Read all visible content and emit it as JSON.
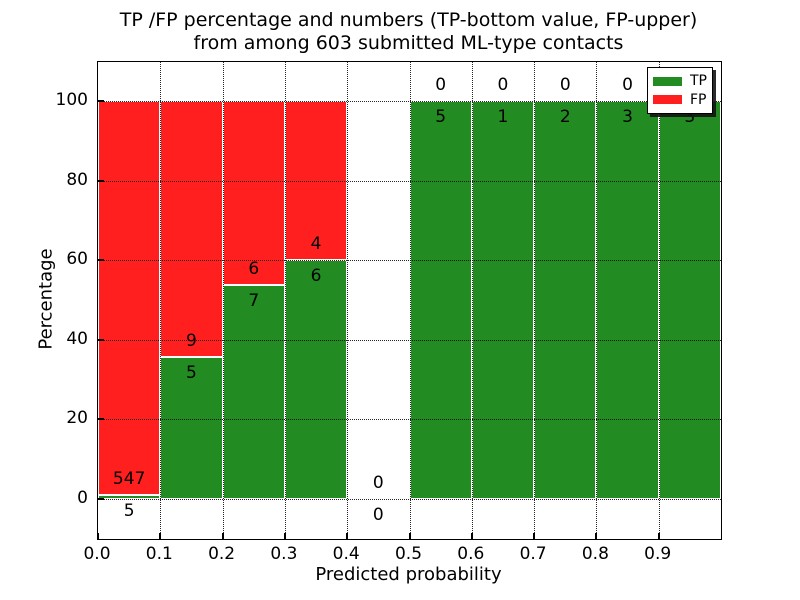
{
  "figure": {
    "title_line1": "TP /FP percentage and numbers (TP-bottom value, FP-upper)",
    "title_line2": "from among 603 submitted ML-type contacts",
    "xlabel": "Predicted probability",
    "ylabel": "Percentage"
  },
  "legend": {
    "position": "upper right",
    "items": [
      {
        "label": "TP",
        "color": "#228b22"
      },
      {
        "label": "FP",
        "color": "#ff1f1f"
      }
    ]
  },
  "chart_data": {
    "type": "bar",
    "stacked": true,
    "normalized": "percent",
    "title": "TP /FP percentage and numbers (TP-bottom value, FP-upper) from among 603 submitted ML-type contacts",
    "xlabel": "Predicted probability",
    "ylabel": "Percentage",
    "total_contacts": 603,
    "xlim": [
      0.0,
      1.0
    ],
    "ylim": [
      -10,
      110
    ],
    "grid": "dotted",
    "legend_position": "upper right",
    "x_tick_labels": [
      "0.0",
      "0.1",
      "0.2",
      "0.3",
      "0.4",
      "0.5",
      "0.6",
      "0.7",
      "0.8",
      "0.9"
    ],
    "y_tick_values": [
      0,
      20,
      40,
      60,
      80,
      100
    ],
    "colors": {
      "tp": "#228b22",
      "fp": "#ff1f1f",
      "bar_edge": "#ffffff"
    },
    "bins": [
      {
        "x0": 0.0,
        "x1": 0.1,
        "tp": 5,
        "fp": 547,
        "tp_pct": 0.9
      },
      {
        "x0": 0.1,
        "x1": 0.2,
        "tp": 5,
        "fp": 9,
        "tp_pct": 35.7
      },
      {
        "x0": 0.2,
        "x1": 0.3,
        "tp": 7,
        "fp": 6,
        "tp_pct": 53.8
      },
      {
        "x0": 0.3,
        "x1": 0.4,
        "tp": 6,
        "fp": 4,
        "tp_pct": 60.0
      },
      {
        "x0": 0.4,
        "x1": 0.5,
        "tp": 0,
        "fp": 0,
        "tp_pct": 0.0
      },
      {
        "x0": 0.5,
        "x1": 0.6,
        "tp": 5,
        "fp": 0,
        "tp_pct": 100.0
      },
      {
        "x0": 0.6,
        "x1": 0.7,
        "tp": 1,
        "fp": 0,
        "tp_pct": 100.0
      },
      {
        "x0": 0.7,
        "x1": 0.8,
        "tp": 2,
        "fp": 0,
        "tp_pct": 100.0
      },
      {
        "x0": 0.8,
        "x1": 0.9,
        "tp": 3,
        "fp": 0,
        "tp_pct": 100.0
      },
      {
        "x0": 0.9,
        "x1": 1.0,
        "tp": 3,
        "fp": 0,
        "tp_pct": 100.0
      }
    ],
    "series": [
      {
        "name": "TP",
        "color": "#228b22",
        "values": [
          5,
          5,
          7,
          6,
          0,
          5,
          1,
          2,
          3,
          3
        ]
      },
      {
        "name": "FP",
        "color": "#ff1f1f",
        "values": [
          547,
          9,
          6,
          4,
          0,
          0,
          0,
          0,
          0,
          0
        ]
      }
    ]
  }
}
